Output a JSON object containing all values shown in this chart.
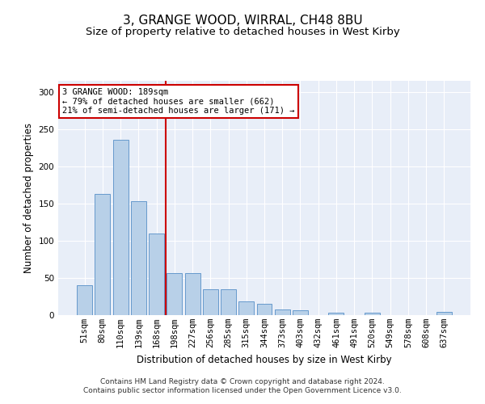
{
  "title": "3, GRANGE WOOD, WIRRAL, CH48 8BU",
  "subtitle": "Size of property relative to detached houses in West Kirby",
  "xlabel": "Distribution of detached houses by size in West Kirby",
  "ylabel": "Number of detached properties",
  "categories": [
    "51sqm",
    "80sqm",
    "110sqm",
    "139sqm",
    "168sqm",
    "198sqm",
    "227sqm",
    "256sqm",
    "285sqm",
    "315sqm",
    "344sqm",
    "373sqm",
    "403sqm",
    "432sqm",
    "461sqm",
    "491sqm",
    "520sqm",
    "549sqm",
    "578sqm",
    "608sqm",
    "637sqm"
  ],
  "values": [
    40,
    163,
    236,
    153,
    110,
    56,
    56,
    35,
    35,
    18,
    15,
    8,
    6,
    0,
    3,
    0,
    3,
    0,
    0,
    0,
    4
  ],
  "bar_color": "#b8d0e8",
  "bar_edge_color": "#6699cc",
  "vline_color": "#cc0000",
  "annotation_text": "3 GRANGE WOOD: 189sqm\n← 79% of detached houses are smaller (662)\n21% of semi-detached houses are larger (171) →",
  "annotation_box_color": "#ffffff",
  "annotation_box_edge": "#cc0000",
  "ylim": [
    0,
    315
  ],
  "yticks": [
    0,
    50,
    100,
    150,
    200,
    250,
    300
  ],
  "footer": "Contains HM Land Registry data © Crown copyright and database right 2024.\nContains public sector information licensed under the Open Government Licence v3.0.",
  "bg_color": "#e8eef8",
  "grid_color": "#ffffff",
  "fig_color": "#ffffff",
  "title_fontsize": 11,
  "subtitle_fontsize": 9.5,
  "label_fontsize": 8.5,
  "tick_fontsize": 7.5,
  "footer_fontsize": 6.5
}
